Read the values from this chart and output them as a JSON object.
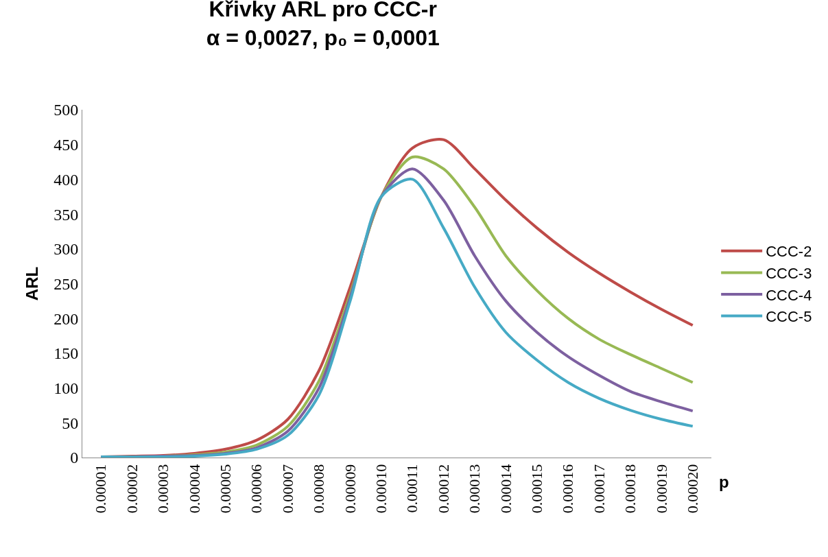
{
  "chart_data": {
    "type": "line",
    "title": "Křivky ARL pro CCC-r",
    "subtitle": "α = 0,0027, p₀ = 0,0001",
    "xlabel": "p",
    "ylabel": "ARL",
    "categories": [
      "0.00001",
      "0.00002",
      "0.00003",
      "0.00004",
      "0.00005",
      "0.00006",
      "0.00007",
      "0.00008",
      "0.00009",
      "0.00010",
      "0.00011",
      "0.00012",
      "0.00013",
      "0.00014",
      "0.00015",
      "0.00016",
      "0.00017",
      "0.00018",
      "0.00019",
      "0.00020"
    ],
    "series": [
      {
        "name": "CCC-2",
        "color": "#be4b48",
        "values": [
          1,
          2,
          3,
          6,
          12,
          25,
          55,
          125,
          245,
          375,
          445,
          457,
          415,
          370,
          330,
          295,
          265,
          238,
          213,
          190
        ]
      },
      {
        "name": "CCC-3",
        "color": "#98b954",
        "values": [
          null,
          null,
          2,
          4,
          8,
          18,
          45,
          110,
          235,
          375,
          432,
          415,
          360,
          290,
          240,
          200,
          170,
          148,
          128,
          108
        ]
      },
      {
        "name": "CCC-4",
        "color": "#7d60a0",
        "values": [
          1,
          1,
          2,
          3,
          6,
          14,
          38,
          100,
          230,
          375,
          415,
          370,
          290,
          225,
          180,
          145,
          118,
          95,
          80,
          67
        ]
      },
      {
        "name": "CCC-5",
        "color": "#46aac5",
        "values": [
          1,
          1,
          1,
          2,
          5,
          12,
          32,
          90,
          225,
          375,
          400,
          330,
          245,
          180,
          140,
          108,
          85,
          68,
          55,
          45
        ]
      }
    ],
    "ylim": [
      0,
      500
    ],
    "yticks": [
      0,
      50,
      100,
      150,
      200,
      250,
      300,
      350,
      400,
      450,
      500
    ],
    "grid": false,
    "legend": "right",
    "marker": "none",
    "line_style": "solid"
  }
}
